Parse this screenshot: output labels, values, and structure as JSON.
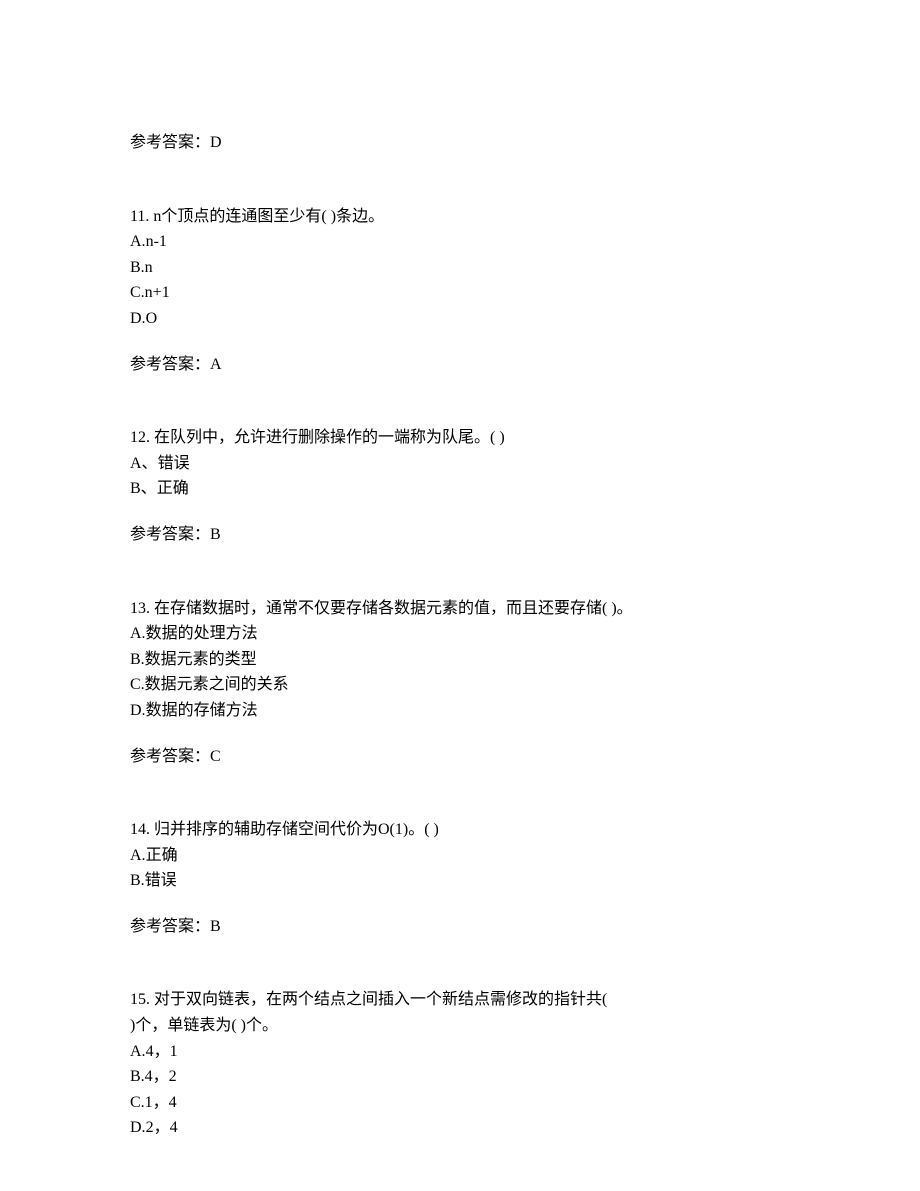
{
  "answer_prefix": "参考答案：",
  "blocks": [
    {
      "type": "answer_only",
      "answer": "D"
    },
    {
      "type": "question",
      "number": "11.",
      "text": "n个顶点的连通图至少有(  )条边。",
      "options": [
        {
          "label": "A.",
          "text": "n-1"
        },
        {
          "label": "B.",
          "text": "n"
        },
        {
          "label": "C.",
          "text": "n+1"
        },
        {
          "label": "D.",
          "text": "O"
        }
      ],
      "answer": "A"
    },
    {
      "type": "question",
      "number": "12.",
      "text": "在队列中，允许进行删除操作的一端称为队尾。(  )",
      "options": [
        {
          "label": "A、",
          "text": "错误"
        },
        {
          "label": "B、",
          "text": "正确"
        }
      ],
      "answer": "B"
    },
    {
      "type": "question",
      "number": "13.",
      "text": "在存储数据时，通常不仅要存储各数据元素的值，而且还要存储(  )。",
      "options": [
        {
          "label": "A.",
          "text": "数据的处理方法"
        },
        {
          "label": "B.",
          "text": "数据元素的类型"
        },
        {
          "label": "C.",
          "text": "数据元素之间的关系"
        },
        {
          "label": "D.",
          "text": "数据的存储方法"
        }
      ],
      "answer": "C"
    },
    {
      "type": "question",
      "number": "14.",
      "text": "归并排序的辅助存储空间代价为O(1)。(  )",
      "options": [
        {
          "label": "A.",
          "text": "正确"
        },
        {
          "label": "B.",
          "text": "错误"
        }
      ],
      "answer": "B"
    },
    {
      "type": "question_no_answer",
      "number": "15.",
      "text_line1": "对于双向链表，在两个结点之间插入一个新结点需修改的指针共(",
      "text_line2": ")个，单链表为(  )个。",
      "options": [
        {
          "label": "A.",
          "text": "4，1"
        },
        {
          "label": "B.",
          "text": "4，2"
        },
        {
          "label": "C.",
          "text": "1，4"
        },
        {
          "label": "D.",
          "text": "2，4"
        }
      ]
    }
  ]
}
